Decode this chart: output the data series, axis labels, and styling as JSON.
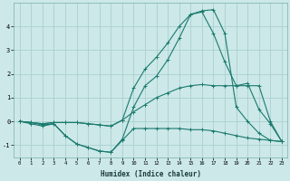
{
  "title": "",
  "xlabel": "Humidex (Indice chaleur)",
  "ylabel": "",
  "bg_color": "#cce8e8",
  "grid_color": "#aacfcf",
  "line_color": "#1a7a6e",
  "x": [
    0,
    1,
    2,
    3,
    4,
    5,
    6,
    7,
    8,
    9,
    10,
    11,
    12,
    13,
    14,
    15,
    16,
    17,
    18,
    19,
    20,
    21,
    22,
    23
  ],
  "line1": [
    0.0,
    -0.1,
    -0.2,
    -0.1,
    -0.6,
    -0.95,
    -1.1,
    -1.25,
    -1.3,
    -0.8,
    -0.3,
    -0.3,
    -0.3,
    -0.3,
    -0.3,
    -0.35,
    -0.35,
    -0.4,
    -0.5,
    -0.6,
    -0.7,
    -0.75,
    -0.8,
    -0.85
  ],
  "line2": [
    0.0,
    -0.05,
    -0.1,
    -0.05,
    -0.05,
    -0.05,
    -0.1,
    -0.15,
    -0.2,
    0.05,
    0.4,
    0.7,
    1.0,
    1.2,
    1.4,
    1.5,
    1.55,
    1.5,
    1.5,
    1.5,
    1.5,
    1.5,
    0.0,
    -0.85
  ],
  "line3": [
    0.0,
    -0.05,
    -0.1,
    -0.05,
    -0.05,
    -0.05,
    -0.1,
    -0.15,
    -0.2,
    0.05,
    1.4,
    2.2,
    2.7,
    3.3,
    4.0,
    4.5,
    4.6,
    3.7,
    2.5,
    1.5,
    1.6,
    0.5,
    -0.1,
    -0.85
  ],
  "line4": [
    0.0,
    -0.05,
    -0.15,
    -0.1,
    -0.6,
    -0.95,
    -1.1,
    -1.25,
    -1.3,
    -0.75,
    0.6,
    1.5,
    1.9,
    2.6,
    3.5,
    4.5,
    4.65,
    4.7,
    3.7,
    0.6,
    0.0,
    -0.5,
    -0.8,
    -0.85
  ],
  "ylim": [
    -1.5,
    5.0
  ],
  "xlim": [
    -0.5,
    23.5
  ],
  "yticks": [
    -1,
    0,
    1,
    2,
    3,
    4
  ],
  "xticks": [
    0,
    1,
    2,
    3,
    4,
    5,
    6,
    7,
    8,
    9,
    10,
    11,
    12,
    13,
    14,
    15,
    16,
    17,
    18,
    19,
    20,
    21,
    22,
    23
  ]
}
